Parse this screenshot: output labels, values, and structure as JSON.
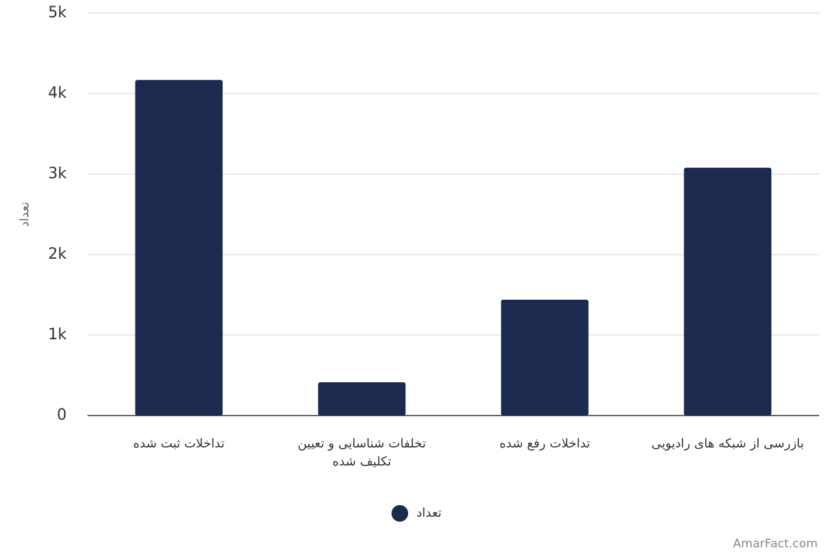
{
  "chart_data": {
    "type": "bar",
    "y_label": "تعداد",
    "categories": [
      "تداخلات ثبت شده",
      "تخلفات شناسایی و تعیین تکلیف شده",
      "تداخلات رفع شده",
      "بازرسی از شبکه های رادیویی"
    ],
    "series": [
      {
        "name": "تعداد",
        "color": "#1b2a4e",
        "values": [
          4170,
          414,
          1440,
          3080
        ]
      }
    ],
    "ylim": [
      0,
      5000
    ],
    "yticks": [
      0,
      {
        "value": 1000,
        "label": "1k"
      },
      {
        "value": 2000,
        "label": "2k"
      },
      {
        "value": 3000,
        "label": "3k"
      },
      {
        "value": 4000,
        "label": "4k"
      },
      {
        "value": 5000,
        "label": "5k"
      }
    ],
    "grid": true,
    "watermark": "AmarFact.com"
  }
}
